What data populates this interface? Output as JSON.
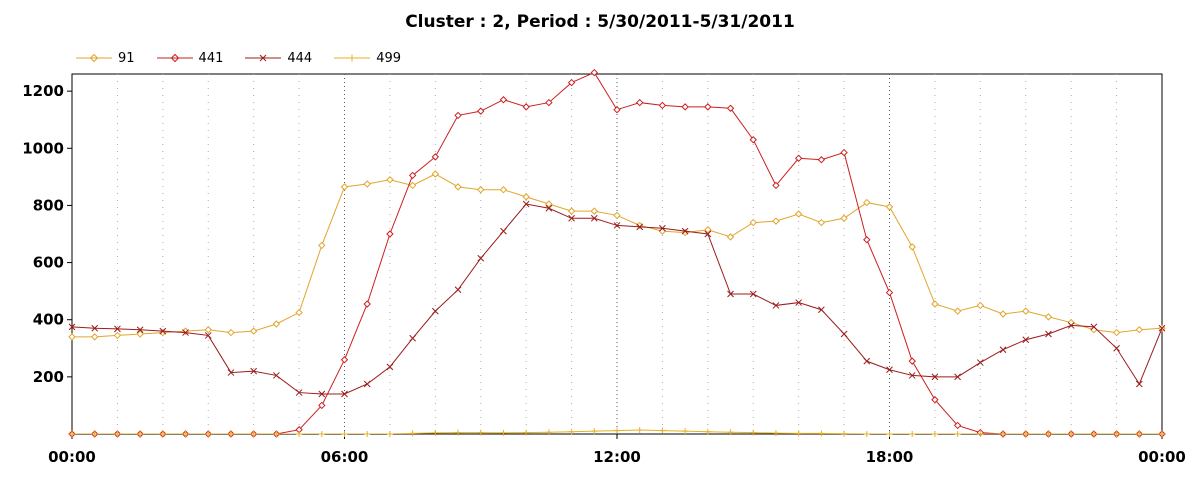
{
  "chart_data": {
    "type": "line",
    "title": "Cluster : 2, Period : 5/30/2011-5/31/2011",
    "xlabel": "",
    "ylabel": "",
    "x_ticks": [
      "00:00",
      "06:00",
      "12:00",
      "18:00",
      "00:00"
    ],
    "y_ticks": [
      "200",
      "400",
      "600",
      "800",
      "1000",
      "1200"
    ],
    "xlim": [
      0,
      24
    ],
    "ylim": [
      0,
      1260
    ],
    "grid": true,
    "legend_position": "top-left",
    "x": [
      0,
      0.5,
      1,
      1.5,
      2,
      2.5,
      3,
      3.5,
      4,
      4.5,
      5,
      5.5,
      6,
      6.5,
      7,
      7.5,
      8,
      8.5,
      9,
      9.5,
      10,
      10.5,
      11,
      11.5,
      12,
      12.5,
      13,
      13.5,
      14,
      14.5,
      15,
      15.5,
      16,
      16.5,
      17,
      17.5,
      18,
      18.5,
      19,
      19.5,
      20,
      20.5,
      21,
      21.5,
      22,
      22.5,
      23,
      23.5,
      24
    ],
    "series": [
      {
        "name": "91",
        "color": "#e0a62c",
        "marker": "diamond",
        "values": [
          340,
          340,
          345,
          350,
          355,
          360,
          365,
          355,
          360,
          385,
          425,
          660,
          865,
          875,
          890,
          870,
          910,
          865,
          855,
          855,
          830,
          805,
          780,
          780,
          765,
          730,
          710,
          705,
          715,
          690,
          740,
          745,
          770,
          740,
          755,
          810,
          795,
          655,
          455,
          430,
          450,
          420,
          430,
          410,
          390,
          365,
          355,
          365,
          370
        ]
      },
      {
        "name": "441",
        "color": "#cc1f1f",
        "marker": "diamond",
        "values": [
          0,
          0,
          0,
          0,
          0,
          0,
          0,
          0,
          0,
          0,
          15,
          100,
          260,
          455,
          700,
          905,
          970,
          1115,
          1130,
          1170,
          1145,
          1160,
          1230,
          1265,
          1135,
          1160,
          1150,
          1145,
          1145,
          1140,
          1030,
          870,
          965,
          960,
          985,
          680,
          495,
          255,
          120,
          30,
          5,
          0,
          0,
          0,
          0,
          0,
          0,
          0,
          0
        ]
      },
      {
        "name": "444",
        "color": "#9b1c1c",
        "marker": "x",
        "values": [
          375,
          370,
          368,
          365,
          360,
          355,
          345,
          215,
          220,
          205,
          145,
          140,
          140,
          175,
          235,
          335,
          430,
          505,
          615,
          710,
          805,
          790,
          755,
          755,
          730,
          725,
          720,
          710,
          700,
          490,
          490,
          450,
          460,
          435,
          350,
          255,
          225,
          205,
          200,
          200,
          250,
          295,
          330,
          350,
          380,
          375,
          300,
          175,
          370
        ]
      },
      {
        "name": "499",
        "color": "#e8b020",
        "marker": "plus",
        "values": [
          0,
          0,
          0,
          0,
          0,
          0,
          0,
          0,
          0,
          0,
          0,
          0,
          0,
          0,
          0,
          2,
          4,
          5,
          5,
          4,
          5,
          6,
          8,
          10,
          12,
          14,
          12,
          10,
          8,
          6,
          5,
          3,
          2,
          2,
          1,
          0,
          0,
          0,
          0,
          0,
          0,
          0,
          0,
          0,
          0,
          0,
          0,
          0,
          0
        ]
      }
    ]
  }
}
